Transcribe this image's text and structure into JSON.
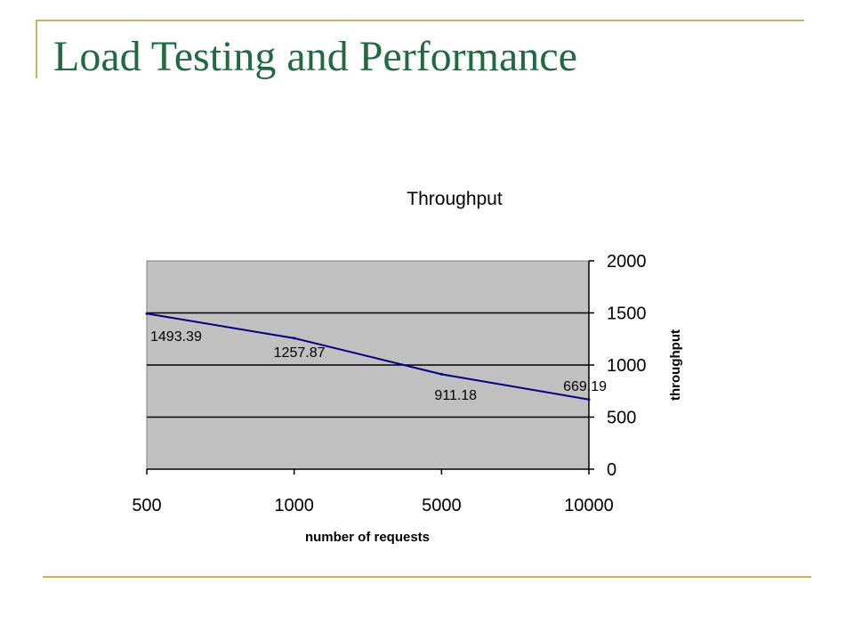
{
  "slide": {
    "title": "Load Testing and Performance"
  },
  "colors": {
    "title": "#1f6b3f",
    "decor_line": "#c8b560",
    "plot_area": "#c0c0c0",
    "series_line": "#000080"
  },
  "chart_data": {
    "type": "line",
    "title": "Throughput",
    "xlabel": "number of requests",
    "ylabel": "throughput",
    "categories": [
      "500",
      "1000",
      "5000",
      "10000"
    ],
    "series": [
      {
        "values": [
          1493.39,
          1257.87,
          911.18,
          669.19
        ]
      }
    ],
    "data_labels": [
      "1493.39",
      "1257.87",
      "911.18",
      "669.19"
    ],
    "ylim": [
      0,
      2000
    ],
    "yticks": [
      "0",
      "500",
      "1000",
      "1500",
      "2000"
    ],
    "y_axis_side": "right",
    "grid": "horizontal",
    "legend": "none"
  }
}
